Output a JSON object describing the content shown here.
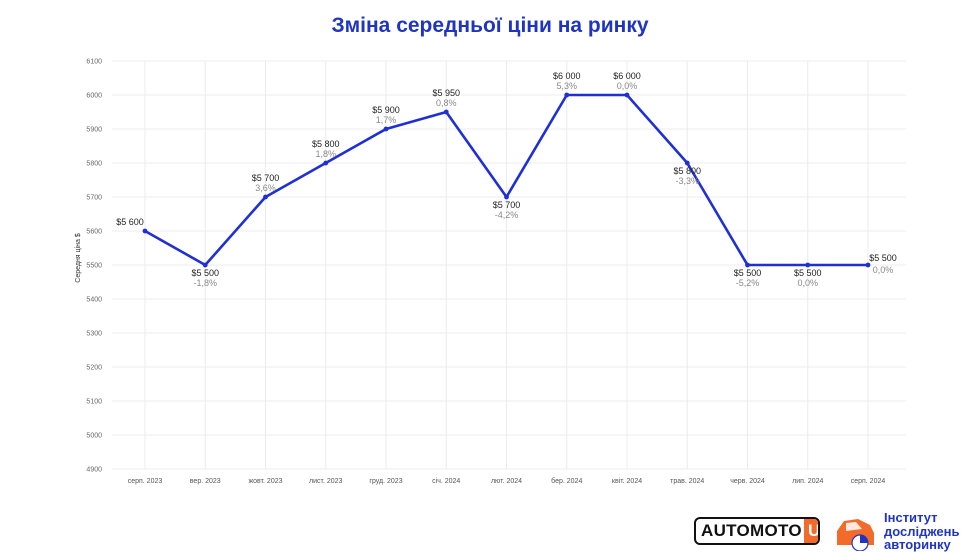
{
  "chart_data": {
    "type": "line",
    "title": "Зміна середньої ціни на ринку",
    "ylabel": "Середня ціна $",
    "xlabel": "",
    "ylim": [
      4900,
      6100
    ],
    "y_ticks": [
      4900,
      5000,
      5100,
      5200,
      5300,
      5400,
      5500,
      5600,
      5700,
      5800,
      5900,
      6000,
      6100
    ],
    "grid": true,
    "line_color": "#1f2fd6",
    "categories": [
      "серп. 2023",
      "вер. 2023",
      "жовт. 2023",
      "лист. 2023",
      "груд. 2023",
      "січ. 2024",
      "лют. 2024",
      "бер. 2024",
      "квіт. 2024",
      "трав. 2024",
      "черв. 2024",
      "лип. 2024",
      "серп. 2024"
    ],
    "series": [
      {
        "values": [
          5600,
          5500,
          5700,
          5800,
          5900,
          5950,
          5700,
          6000,
          6000,
          5800,
          5500,
          5500,
          5500
        ],
        "value_labels": [
          "$5 600",
          "$5 500",
          "$5 700",
          "$5 800",
          "$5 900",
          "$5 950",
          "$5 700",
          "$6 000",
          "$6 000",
          "$5 800",
          "$5 500",
          "$5 500",
          "$5 500"
        ],
        "change_labels": [
          "",
          "-1,8%",
          "3,6%",
          "1,8%",
          "1,7%",
          "0,8%",
          "-4,2%",
          "5,3%",
          "0,0%",
          "-3,3%",
          "-5,2%",
          "0,0%",
          "0,0%"
        ]
      }
    ]
  },
  "logos": {
    "automoto_text": "AUTOMOTO",
    "automoto_ua": "UA",
    "automoto_accent": "#f26b2a",
    "institute_line1": "Інститут",
    "institute_line2": "досліджень",
    "institute_line3": "авторинку",
    "institute_color": "#1f35c2",
    "institute_icon": "car-chart-icon"
  }
}
